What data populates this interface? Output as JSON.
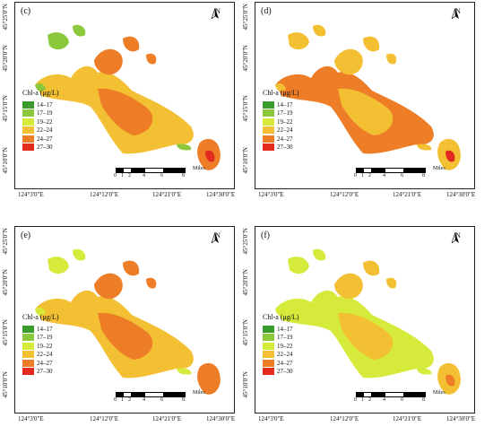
{
  "legend": {
    "title": "Chl-a (μg/L)",
    "classes": [
      {
        "label": "14–17",
        "color": "#3a9c2c"
      },
      {
        "label": "17–19",
        "color": "#8cc83c"
      },
      {
        "label": "19–22",
        "color": "#d6ea3c"
      },
      {
        "label": "22–24",
        "color": "#f4c033"
      },
      {
        "label": "24–27",
        "color": "#ee7d28"
      },
      {
        "label": "27–30",
        "color": "#e22b1e"
      }
    ]
  },
  "north_label": "N",
  "scale_bar": {
    "ticks": [
      "0",
      "1",
      "2",
      "4",
      "6",
      "8"
    ],
    "unit": "Miles"
  },
  "lon_labels": [
    "124°3'0\"E",
    "124°12'0\"E",
    "124°21'0\"E",
    "124°30'0\"E"
  ],
  "lat_labels": [
    "45°25'0\"N",
    "45°20'0\"N",
    "45°15'0\"N",
    "45°10'0\"N"
  ],
  "panels": [
    {
      "label": "(c)",
      "base_color": "#f4c033",
      "patch_color": "#ee7d28",
      "edge_color": "#8cc83c",
      "hot_color": "#e22b1e"
    },
    {
      "label": "(d)",
      "base_color": "#ee7d28",
      "patch_color": "#f4c033",
      "edge_color": "#f4c033",
      "hot_color": "#e22b1e"
    },
    {
      "label": "(e)",
      "base_color": "#f4c033",
      "patch_color": "#ee7d28",
      "edge_color": "#d6ea3c",
      "hot_color": "#ee7d28"
    },
    {
      "label": "(f)",
      "base_color": "#d6ea3c",
      "patch_color": "#f4c033",
      "edge_color": "#d6ea3c",
      "hot_color": "#ee7d28"
    }
  ]
}
